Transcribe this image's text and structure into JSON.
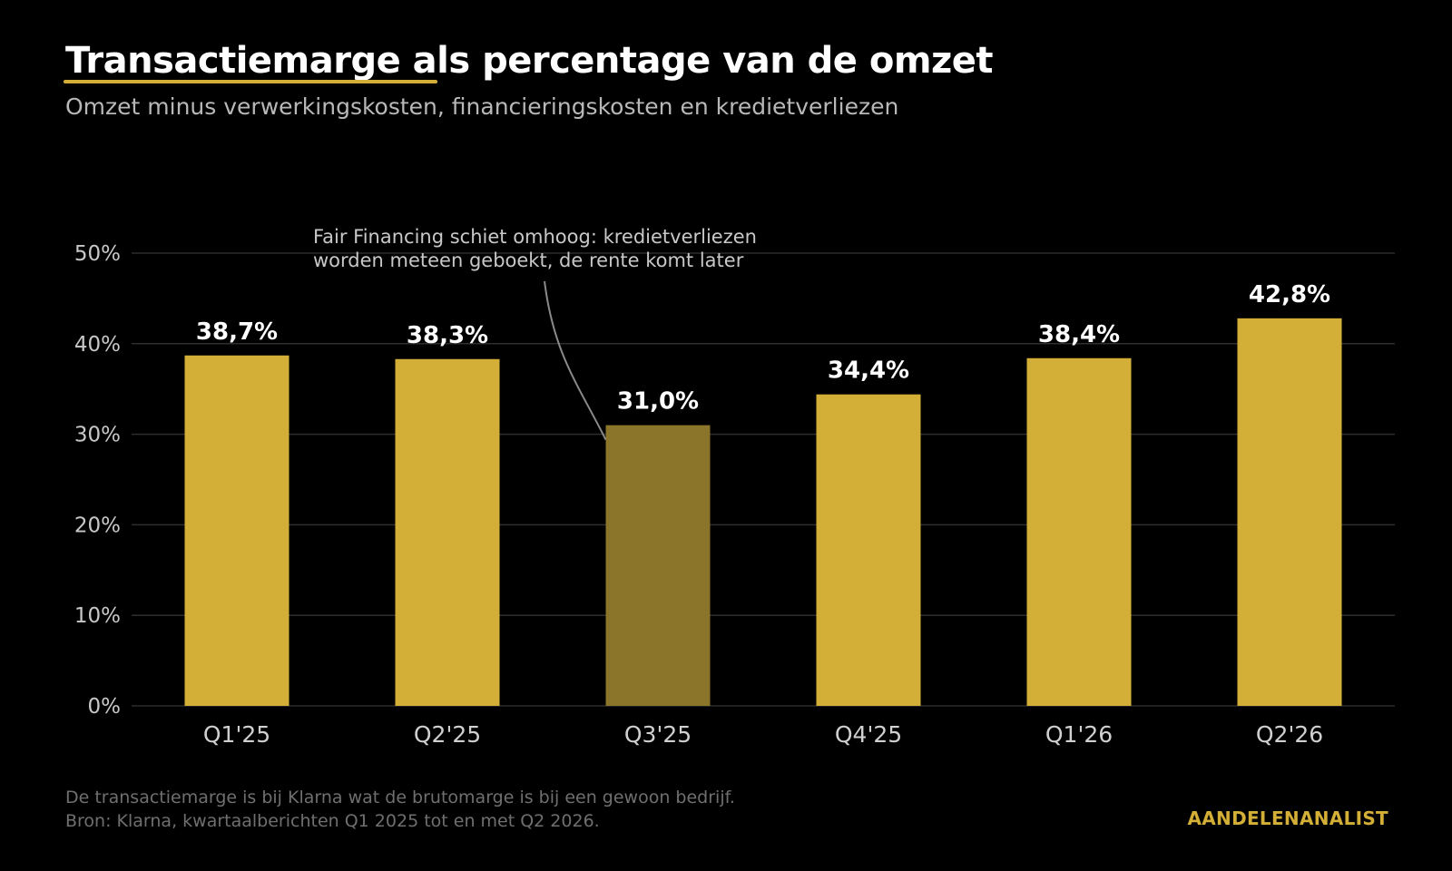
{
  "header": {
    "title": "Transactiemarge als percentage van de omzet",
    "subtitle": "Omzet minus verwerkingskosten, financieringskosten en kredietverliezen"
  },
  "chart_data": {
    "type": "bar",
    "categories": [
      "Q1'25",
      "Q2'25",
      "Q3'25",
      "Q4'25",
      "Q1'26",
      "Q2'26"
    ],
    "values": [
      38.7,
      38.3,
      31.0,
      34.4,
      38.4,
      42.8
    ],
    "value_labels": [
      "38,7%",
      "38,3%",
      "31,0%",
      "34,4%",
      "38,4%",
      "42,8%"
    ],
    "ylim": [
      0,
      50
    ],
    "yticks": [
      0,
      10,
      20,
      30,
      40,
      50
    ],
    "ytick_labels": [
      "0%",
      "10%",
      "20%",
      "30%",
      "40%",
      "50%"
    ],
    "grid": true,
    "colors": {
      "bar": "#d4af37",
      "highlight": "#8b752a",
      "grid": "#2e2e2e"
    },
    "highlight_index": 2,
    "annotation": {
      "lines": [
        "Fair Financing schiet omhoog: kredietverliezen",
        "worden meteen geboekt, de rente komt later"
      ],
      "target_index": 2
    }
  },
  "footer": {
    "note_line1": "De transactiemarge is bij Klarna wat de brutomarge is bij een gewoon bedrijf.",
    "note_line2": "Bron: Klarna, kwartaalberichten Q1 2025 tot en met Q2 2026.",
    "brand": "AANDELENANALIST"
  }
}
